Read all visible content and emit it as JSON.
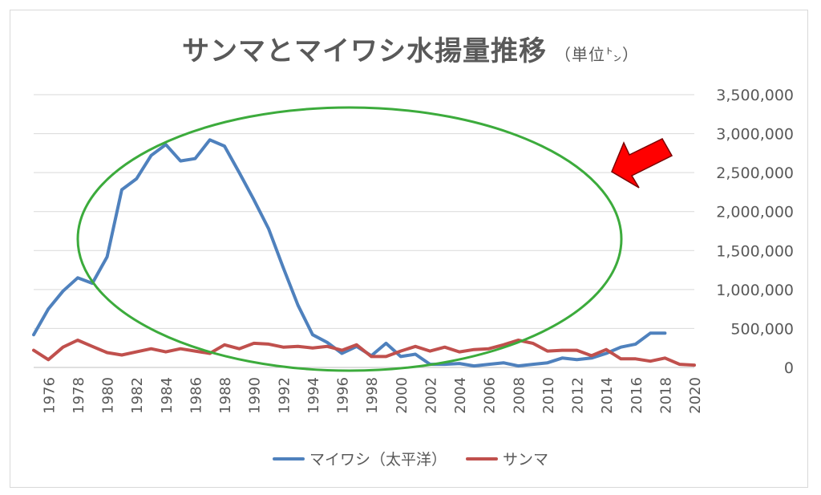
{
  "chart_data": {
    "type": "line",
    "title": "サンマとマイワシ水揚量推移",
    "unit_label": "（単位㌧）",
    "xlabel": "",
    "ylabel": "",
    "ylim": [
      0,
      3500000
    ],
    "y_ticks": [
      "0",
      "500,000",
      "1,000,000",
      "1,500,000",
      "2,000,000",
      "2,500,000",
      "3,000,000",
      "3,500,000"
    ],
    "x_range": [
      1975,
      2020
    ],
    "x_ticks": [
      "1976",
      "1978",
      "1980",
      "1982",
      "1984",
      "1986",
      "1988",
      "1990",
      "1992",
      "1994",
      "1996",
      "1998",
      "2000",
      "2002",
      "2004",
      "2006",
      "2008",
      "2010",
      "2012",
      "2014",
      "2016",
      "2018",
      "2020"
    ],
    "grid": true,
    "legend_position": "bottom",
    "series": [
      {
        "name": "マイワシ（太平洋）",
        "color": "#4f81bd",
        "x": [
          1975,
          1976,
          1977,
          1978,
          1979,
          1980,
          1981,
          1982,
          1983,
          1984,
          1985,
          1986,
          1987,
          1988,
          1989,
          1990,
          1991,
          1992,
          1993,
          1994,
          1995,
          1996,
          1997,
          1998,
          1999,
          2000,
          2001,
          2002,
          2003,
          2004,
          2005,
          2006,
          2007,
          2008,
          2009,
          2010,
          2011,
          2012,
          2013,
          2014,
          2015,
          2016,
          2017,
          2018
        ],
        "values": [
          420000,
          750000,
          980000,
          1150000,
          1080000,
          1420000,
          2280000,
          2420000,
          2720000,
          2860000,
          2650000,
          2680000,
          2920000,
          2840000,
          2500000,
          2150000,
          1780000,
          1280000,
          800000,
          420000,
          320000,
          180000,
          270000,
          150000,
          310000,
          140000,
          170000,
          40000,
          40000,
          50000,
          20000,
          40000,
          60000,
          20000,
          40000,
          60000,
          120000,
          100000,
          120000,
          180000,
          260000,
          300000,
          440000,
          440000
        ]
      },
      {
        "name": "サンマ",
        "color": "#c0504d",
        "x": [
          1975,
          1976,
          1977,
          1978,
          1979,
          1980,
          1981,
          1982,
          1983,
          1984,
          1985,
          1986,
          1987,
          1988,
          1989,
          1990,
          1991,
          1992,
          1993,
          1994,
          1995,
          1996,
          1997,
          1998,
          1999,
          2000,
          2001,
          2002,
          2003,
          2004,
          2005,
          2006,
          2007,
          2008,
          2009,
          2010,
          2011,
          2012,
          2013,
          2014,
          2015,
          2016,
          2017,
          2018,
          2019,
          2020
        ],
        "values": [
          220000,
          100000,
          260000,
          350000,
          270000,
          190000,
          160000,
          200000,
          240000,
          200000,
          240000,
          210000,
          180000,
          290000,
          240000,
          310000,
          300000,
          260000,
          270000,
          250000,
          270000,
          220000,
          290000,
          140000,
          140000,
          210000,
          270000,
          210000,
          260000,
          200000,
          230000,
          240000,
          290000,
          350000,
          310000,
          210000,
          220000,
          220000,
          150000,
          230000,
          110000,
          110000,
          80000,
          120000,
          40000,
          30000
        ]
      }
    ]
  },
  "annotations": {
    "ellipse_color": "#3cab3c",
    "arrow_color": "#ff0000"
  }
}
